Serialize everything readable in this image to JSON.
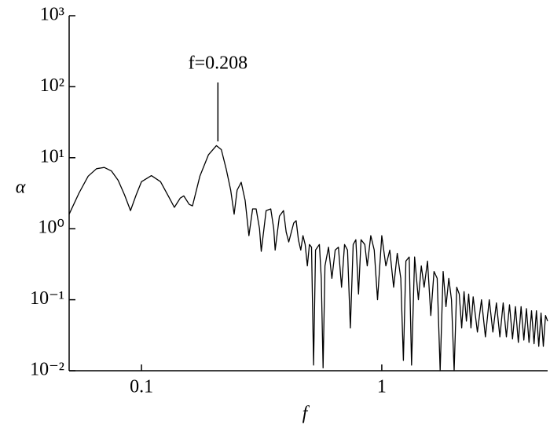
{
  "chart_data": {
    "type": "line",
    "x_label": "f",
    "y_label": "α",
    "x_scale": "log",
    "y_scale": "log",
    "color": "#000000",
    "xlim": [
      0.05,
      4.9
    ],
    "ylim": [
      0.01,
      1000
    ],
    "xticks": [
      0.1,
      1
    ],
    "yticks": [
      {
        "value": 0.01,
        "label": "10⁻²"
      },
      {
        "value": 0.1,
        "label": "10⁻¹"
      },
      {
        "value": 1,
        "label": "10⁰"
      },
      {
        "value": 10,
        "label": "10¹"
      },
      {
        "value": 100,
        "label": "10²"
      },
      {
        "value": 1000,
        "label": "10³"
      }
    ],
    "annotation": {
      "text": "f=0.208",
      "x": 0.208
    },
    "x": [
      0.05,
      0.055,
      0.06,
      0.065,
      0.07,
      0.075,
      0.08,
      0.085,
      0.09,
      0.095,
      0.1,
      0.11,
      0.12,
      0.13,
      0.137,
      0.145,
      0.15,
      0.158,
      0.163,
      0.175,
      0.19,
      0.205,
      0.215,
      0.225,
      0.235,
      0.243,
      0.25,
      0.26,
      0.27,
      0.28,
      0.29,
      0.3,
      0.31,
      0.315,
      0.33,
      0.345,
      0.355,
      0.36,
      0.375,
      0.39,
      0.4,
      0.41,
      0.43,
      0.44,
      0.45,
      0.46,
      0.47,
      0.48,
      0.49,
      0.5,
      0.51,
      0.52,
      0.53,
      0.55,
      0.56,
      0.57,
      0.58,
      0.6,
      0.62,
      0.64,
      0.66,
      0.68,
      0.7,
      0.72,
      0.74,
      0.76,
      0.78,
      0.8,
      0.82,
      0.85,
      0.87,
      0.9,
      0.93,
      0.96,
      1.0,
      1.04,
      1.08,
      1.12,
      1.16,
      1.2,
      1.23,
      1.26,
      1.3,
      1.33,
      1.37,
      1.42,
      1.46,
      1.5,
      1.55,
      1.6,
      1.65,
      1.7,
      1.75,
      1.8,
      1.85,
      1.9,
      1.95,
      2.0,
      2.05,
      2.1,
      2.15,
      2.2,
      2.25,
      2.3,
      2.35,
      2.4,
      2.5,
      2.6,
      2.7,
      2.8,
      2.9,
      3.0,
      3.1,
      3.2,
      3.3,
      3.4,
      3.5,
      3.6,
      3.7,
      3.8,
      3.9,
      4.0,
      4.1,
      4.2,
      4.3,
      4.4,
      4.5,
      4.6,
      4.7,
      4.8,
      4.9
    ],
    "values": [
      1.6,
      3.2,
      5.5,
      7.0,
      7.3,
      6.5,
      4.8,
      3.0,
      1.8,
      3.0,
      4.6,
      5.6,
      4.6,
      2.8,
      2.0,
      2.7,
      2.9,
      2.2,
      2.1,
      5.5,
      11,
      14.8,
      13,
      7,
      3.5,
      1.6,
      3.5,
      4.5,
      2.5,
      0.8,
      1.9,
      1.9,
      1.0,
      0.48,
      1.8,
      1.9,
      1.0,
      0.5,
      1.5,
      1.8,
      0.9,
      0.65,
      1.2,
      1.3,
      0.7,
      0.5,
      0.8,
      0.6,
      0.3,
      0.6,
      0.55,
      0.012,
      0.5,
      0.6,
      0.2,
      0.011,
      0.3,
      0.55,
      0.2,
      0.5,
      0.55,
      0.15,
      0.6,
      0.5,
      0.04,
      0.6,
      0.7,
      0.12,
      0.7,
      0.6,
      0.3,
      0.8,
      0.5,
      0.1,
      0.8,
      0.3,
      0.5,
      0.15,
      0.45,
      0.2,
      0.014,
      0.35,
      0.4,
      0.012,
      0.4,
      0.1,
      0.3,
      0.15,
      0.35,
      0.06,
      0.25,
      0.2,
      0.01,
      0.25,
      0.08,
      0.2,
      0.1,
      0.01,
      0.15,
      0.12,
      0.04,
      0.13,
      0.05,
      0.12,
      0.04,
      0.11,
      0.035,
      0.1,
      0.03,
      0.1,
      0.035,
      0.09,
      0.03,
      0.09,
      0.03,
      0.085,
      0.028,
      0.08,
      0.025,
      0.08,
      0.027,
      0.075,
      0.025,
      0.07,
      0.024,
      0.07,
      0.022,
      0.065,
      0.022,
      0.06,
      0.05
    ]
  }
}
